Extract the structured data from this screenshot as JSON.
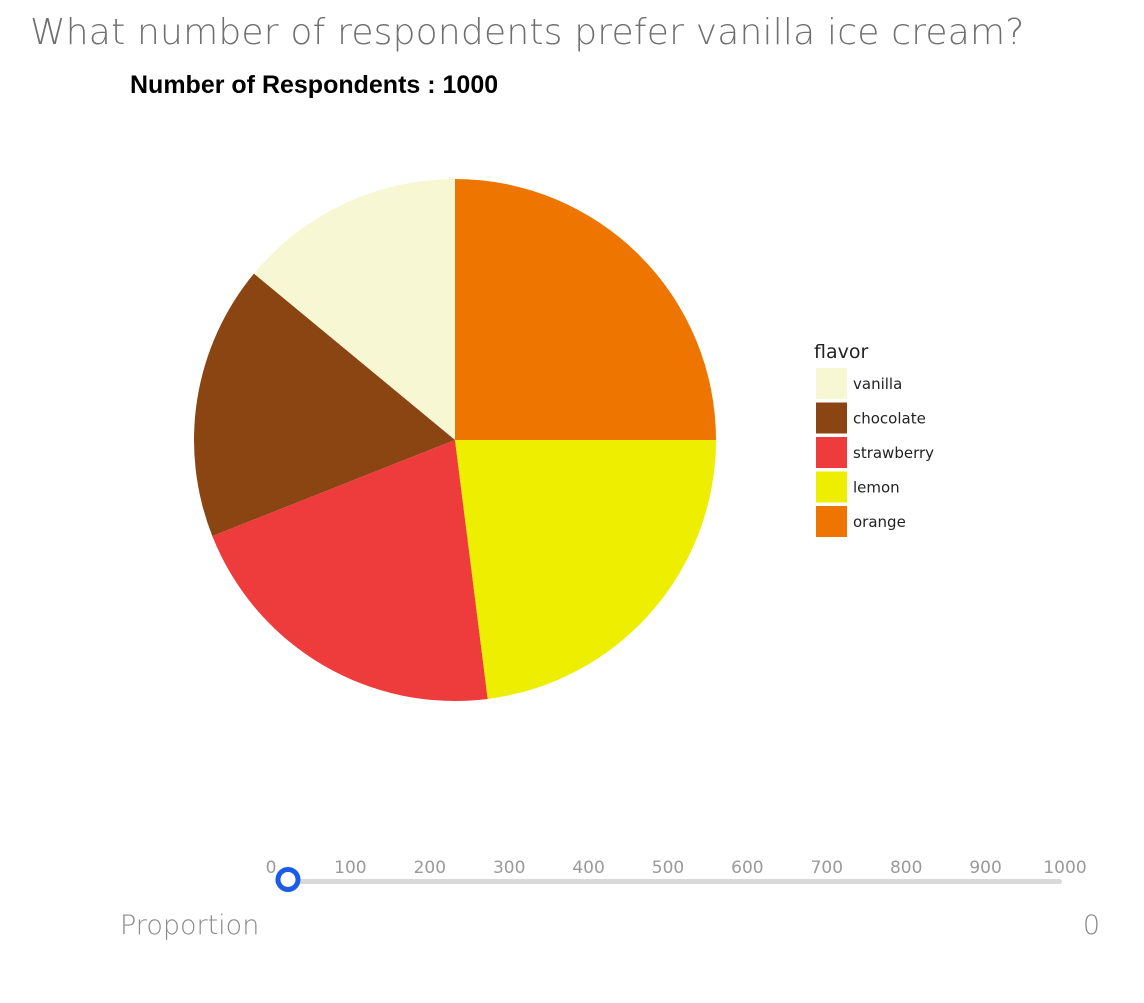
{
  "question": "What number of respondents prefer vanilla ice cream?",
  "chart_data": {
    "type": "pie",
    "title": "Number of Respondents : 1000",
    "legend_title": "flavor",
    "legend_position": "right",
    "categories": [
      "vanilla",
      "chocolate",
      "strawberry",
      "lemon",
      "orange"
    ],
    "values": [
      140,
      170,
      210,
      230,
      250
    ],
    "colors": [
      "#f8f7d3",
      "#8b4513",
      "#ee3b3b",
      "#eeee00",
      "#ee7600"
    ]
  },
  "slider": {
    "min": 0,
    "max": 1000,
    "value": 0,
    "ticks": [
      "0",
      "100",
      "200",
      "300",
      "400",
      "500",
      "600",
      "700",
      "800",
      "900",
      "1000"
    ]
  },
  "proportion": {
    "label": "Proportion",
    "value": "0"
  }
}
